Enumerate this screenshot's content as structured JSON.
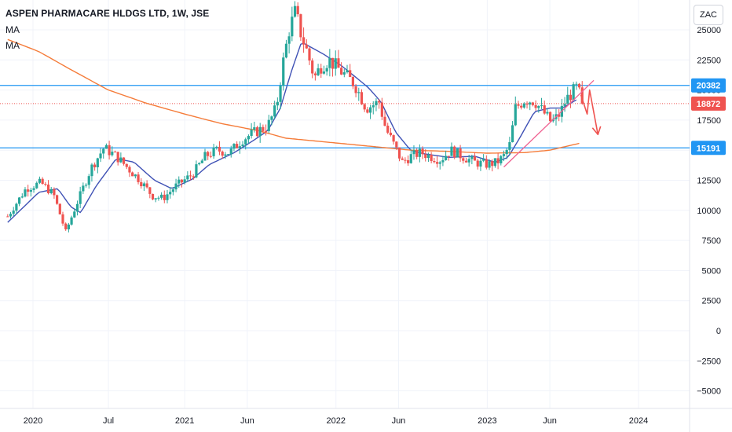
{
  "header": {
    "title": "ASPEN PHARMACARE HLDGS LTD, 1W, JSE",
    "indicators": [
      "MA",
      "MA"
    ],
    "currency": "ZAC"
  },
  "colors": {
    "up": "#26a69a",
    "down": "#ef5350",
    "ma_fast": "#3f51b5",
    "ma_slow": "#f57c3a",
    "hline": "#2196f3",
    "price_line": "#ef5350",
    "trend": "#f06292",
    "arrow": "#ef5350",
    "grid": "#f0f3fa",
    "axis_text": "#131722"
  },
  "chart_data": {
    "type": "candlestick",
    "title": "ASPEN PHARMACARE HLDGS LTD, 1W, JSE",
    "ylim": [
      -6200,
      29000
    ],
    "grid": true,
    "y_ticks": [
      25000,
      22500,
      20000,
      17500,
      15000,
      12500,
      10000,
      7500,
      5000,
      2500,
      0,
      -2500,
      -5000
    ],
    "y_tick_labels": [
      "25000",
      "22500",
      "20000",
      "17500",
      "15000",
      "12500",
      "10000",
      "7500",
      "5000",
      "2500",
      "0",
      "−2500",
      "−5000"
    ],
    "x_ticks": [
      {
        "label": "2020",
        "date": "2020-01"
      },
      {
        "label": "Jul",
        "date": "2020-07"
      },
      {
        "label": "2021",
        "date": "2021-01"
      },
      {
        "label": "Jun",
        "date": "2021-06"
      },
      {
        "label": "2022",
        "date": "2022-01"
      },
      {
        "label": "Jun",
        "date": "2022-06"
      },
      {
        "label": "2023",
        "date": "2023-01"
      },
      {
        "label": "Jun",
        "date": "2023-06"
      },
      {
        "label": "2024",
        "date": "2024-01"
      }
    ],
    "price_anchors": [
      [
        "2019-11-01",
        9500
      ],
      [
        "2019-12-15",
        11800
      ],
      [
        "2020-01-20",
        12300
      ],
      [
        "2020-02-20",
        11300
      ],
      [
        "2020-03-20",
        8200
      ],
      [
        "2020-04-15",
        10500
      ],
      [
        "2020-05-20",
        13500
      ],
      [
        "2020-06-20",
        15200
      ],
      [
        "2020-07-20",
        14500
      ],
      [
        "2020-08-20",
        13400
      ],
      [
        "2020-09-15",
        12500
      ],
      [
        "2020-10-15",
        11200
      ],
      [
        "2020-11-10",
        11000
      ],
      [
        "2020-12-10",
        12000
      ],
      [
        "2021-01-20",
        13000
      ],
      [
        "2021-02-20",
        14500
      ],
      [
        "2021-03-20",
        15000
      ],
      [
        "2021-04-20",
        14800
      ],
      [
        "2021-05-20",
        15900
      ],
      [
        "2021-06-20",
        16500
      ],
      [
        "2021-07-20",
        17000
      ],
      [
        "2021-08-10",
        18500
      ],
      [
        "2021-08-25",
        22000
      ],
      [
        "2021-09-10",
        25000
      ],
      [
        "2021-09-25",
        26500
      ],
      [
        "2021-10-10",
        24500
      ],
      [
        "2021-10-25",
        23000
      ],
      [
        "2021-11-10",
        21000
      ],
      [
        "2021-11-25",
        22000
      ],
      [
        "2021-12-15",
        22500
      ],
      [
        "2022-01-15",
        21500
      ],
      [
        "2022-02-15",
        20500
      ],
      [
        "2022-03-15",
        18500
      ],
      [
        "2022-04-15",
        19000
      ],
      [
        "2022-05-01",
        16800
      ],
      [
        "2022-05-20",
        15500
      ],
      [
        "2022-06-10",
        14000
      ],
      [
        "2022-07-01",
        14500
      ],
      [
        "2022-07-25",
        14800
      ],
      [
        "2022-08-15",
        14500
      ],
      [
        "2022-09-10",
        14200
      ],
      [
        "2022-10-05",
        15000
      ],
      [
        "2022-11-01",
        14500
      ],
      [
        "2022-12-01",
        14000
      ],
      [
        "2023-01-01",
        13800
      ],
      [
        "2023-01-25",
        14000
      ],
      [
        "2023-02-10",
        14500
      ],
      [
        "2023-02-25",
        15500
      ],
      [
        "2023-03-10",
        18500
      ],
      [
        "2023-04-01",
        19200
      ],
      [
        "2023-04-25",
        19100
      ],
      [
        "2023-05-20",
        18000
      ],
      [
        "2023-06-05",
        17300
      ],
      [
        "2023-06-25",
        18000
      ],
      [
        "2023-07-10",
        19200
      ],
      [
        "2023-07-25",
        19800
      ],
      [
        "2023-08-05",
        20200
      ],
      [
        "2023-08-15",
        19400
      ],
      [
        "2023-08-20",
        18872
      ]
    ],
    "last_price": 18872,
    "series": [
      {
        "role": "moving-average-fast",
        "anchors": [
          [
            "2019-11-01",
            9000
          ],
          [
            "2020-01-15",
            11500
          ],
          [
            "2020-03-01",
            11800
          ],
          [
            "2020-04-01",
            10300
          ],
          [
            "2020-04-25",
            9800
          ],
          [
            "2020-06-01",
            12000
          ],
          [
            "2020-07-20",
            14300
          ],
          [
            "2020-09-01",
            14000
          ],
          [
            "2020-10-20",
            12500
          ],
          [
            "2020-12-01",
            11800
          ],
          [
            "2021-01-20",
            12600
          ],
          [
            "2021-03-01",
            13800
          ],
          [
            "2021-05-01",
            14800
          ],
          [
            "2021-06-20",
            15900
          ],
          [
            "2021-07-20",
            16600
          ],
          [
            "2021-08-20",
            18500
          ],
          [
            "2021-09-15",
            21500
          ],
          [
            "2021-10-10",
            24000
          ],
          [
            "2021-10-25",
            23700
          ],
          [
            "2021-12-01",
            23000
          ],
          [
            "2022-01-15",
            22000
          ],
          [
            "2022-02-20",
            21000
          ],
          [
            "2022-03-20",
            20200
          ],
          [
            "2022-04-20",
            19000
          ],
          [
            "2022-05-25",
            16500
          ],
          [
            "2022-06-30",
            15000
          ],
          [
            "2022-08-01",
            14700
          ],
          [
            "2022-10-01",
            14400
          ],
          [
            "2022-12-01",
            14500
          ],
          [
            "2023-01-20",
            14000
          ],
          [
            "2023-02-20",
            14400
          ],
          [
            "2023-03-20",
            16000
          ],
          [
            "2023-04-25",
            18200
          ],
          [
            "2023-06-01",
            18500
          ],
          [
            "2023-07-01",
            18500
          ],
          [
            "2023-08-10",
            19300
          ]
        ]
      },
      {
        "role": "moving-average-slow",
        "anchors": [
          [
            "2019-11-01",
            24200
          ],
          [
            "2020-01-15",
            23200
          ],
          [
            "2020-04-01",
            21700
          ],
          [
            "2020-07-01",
            20000
          ],
          [
            "2020-10-01",
            18900
          ],
          [
            "2021-01-01",
            18000
          ],
          [
            "2021-04-01",
            17200
          ],
          [
            "2021-07-01",
            16600
          ],
          [
            "2021-09-01",
            16000
          ],
          [
            "2021-11-01",
            15800
          ],
          [
            "2022-01-01",
            15600
          ],
          [
            "2022-04-01",
            15300
          ],
          [
            "2022-07-01",
            15000
          ],
          [
            "2022-10-01",
            14900
          ],
          [
            "2023-01-01",
            14750
          ],
          [
            "2023-04-01",
            14800
          ],
          [
            "2023-06-01",
            15000
          ],
          [
            "2023-08-15",
            15600
          ]
        ]
      }
    ],
    "horizontal_levels": [
      20382,
      15191
    ],
    "trend_line": [
      [
        "2023-02-10",
        13600
      ],
      [
        "2023-09-15",
        20800
      ]
    ],
    "arrow_path": [
      [
        "2023-08-15",
        19600
      ],
      [
        "2023-08-30",
        18000
      ],
      [
        "2023-09-05",
        20000
      ],
      [
        "2023-09-25",
        16300
      ]
    ],
    "price_labels": [
      {
        "value": 20382,
        "text": "20382",
        "color": "#2196f3"
      },
      {
        "value": 18872,
        "text": "18872",
        "color": "#ef5350"
      },
      {
        "value": 15191,
        "text": "15191",
        "color": "#2196f3"
      }
    ]
  }
}
